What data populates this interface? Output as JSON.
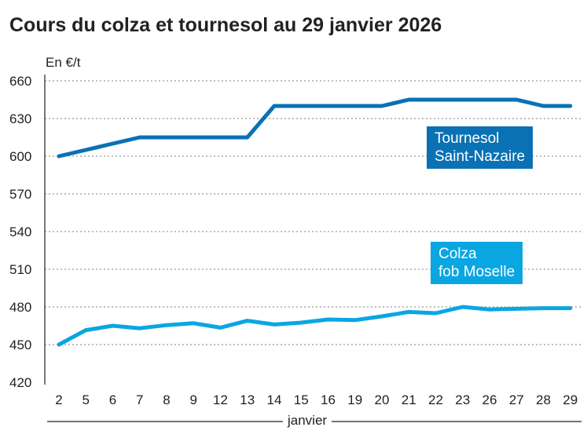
{
  "chart_data": {
    "type": "line",
    "title": "Cours du colza et tournesol au 29 janvier 2026",
    "ylabel": "En €/t",
    "xlabel": "janvier",
    "ylim": [
      420,
      660
    ],
    "yticks": [
      420,
      450,
      480,
      510,
      540,
      570,
      600,
      630,
      660
    ],
    "grid": true,
    "categories": [
      "2",
      "5",
      "6",
      "7",
      "8",
      "9",
      "12",
      "13",
      "14",
      "15",
      "16",
      "19",
      "20",
      "21",
      "22",
      "23",
      "26",
      "27",
      "28",
      "29"
    ],
    "series": [
      {
        "name": "Tournesol Saint-Nazaire",
        "name_lines": [
          "Tournesol",
          "Saint-Nazaire"
        ],
        "color": "#0a71b5",
        "values": [
          600,
          605,
          610,
          615,
          615,
          615,
          615,
          615,
          640,
          640,
          640,
          640,
          640,
          645,
          645,
          645,
          645,
          645,
          640,
          640
        ]
      },
      {
        "name": "Colza fob Moselle",
        "name_lines": [
          "Colza",
          "fob Moselle"
        ],
        "color": "#0aa6e2",
        "values": [
          450,
          461.5,
          465,
          463,
          465.5,
          467,
          463.5,
          469,
          466,
          467.5,
          470,
          469.5,
          472.5,
          476,
          475,
          480,
          478,
          478.5,
          479,
          479
        ]
      }
    ]
  }
}
